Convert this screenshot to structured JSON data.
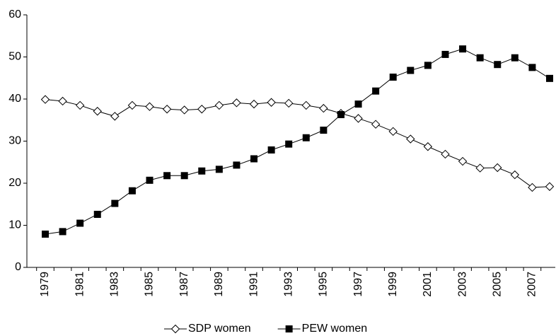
{
  "chart_data": {
    "type": "line",
    "categories": [
      "1979",
      null,
      "1981",
      null,
      "1983",
      null,
      "1985",
      null,
      "1987",
      null,
      "1989",
      null,
      "1991",
      null,
      "1993",
      null,
      "1995",
      null,
      "1997",
      null,
      "1999",
      null,
      "2001",
      null,
      "2003",
      null,
      "2005",
      null,
      "2007",
      null
    ],
    "series": [
      {
        "name": "SDP women",
        "color": "#000000",
        "marker": "diamond-open",
        "values": [
          39.9,
          39.5,
          38.5,
          37.1,
          35.9,
          38.5,
          38.2,
          37.6,
          37.4,
          37.6,
          38.5,
          39.1,
          38.8,
          39.2,
          39.0,
          38.5,
          37.8,
          36.6,
          35.4,
          34.0,
          32.3,
          30.5,
          28.7,
          26.9,
          25.2,
          23.6,
          23.7,
          22.0,
          19.0,
          19.2
        ]
      },
      {
        "name": "PEW women",
        "color": "#000000",
        "marker": "square-filled",
        "values": [
          7.9,
          8.5,
          10.5,
          12.6,
          15.2,
          18.2,
          20.7,
          21.8,
          21.8,
          22.9,
          23.3,
          24.3,
          25.8,
          27.9,
          29.3,
          30.8,
          32.6,
          36.3,
          38.8,
          41.9,
          45.2,
          46.8,
          48.0,
          50.6,
          51.9,
          49.8,
          48.2,
          49.8,
          47.5,
          44.9
        ]
      }
    ],
    "ylim": [
      0,
      60
    ],
    "yticks": [
      0,
      10,
      20,
      30,
      40,
      50,
      60
    ],
    "grid": false,
    "legend": "bottom"
  }
}
